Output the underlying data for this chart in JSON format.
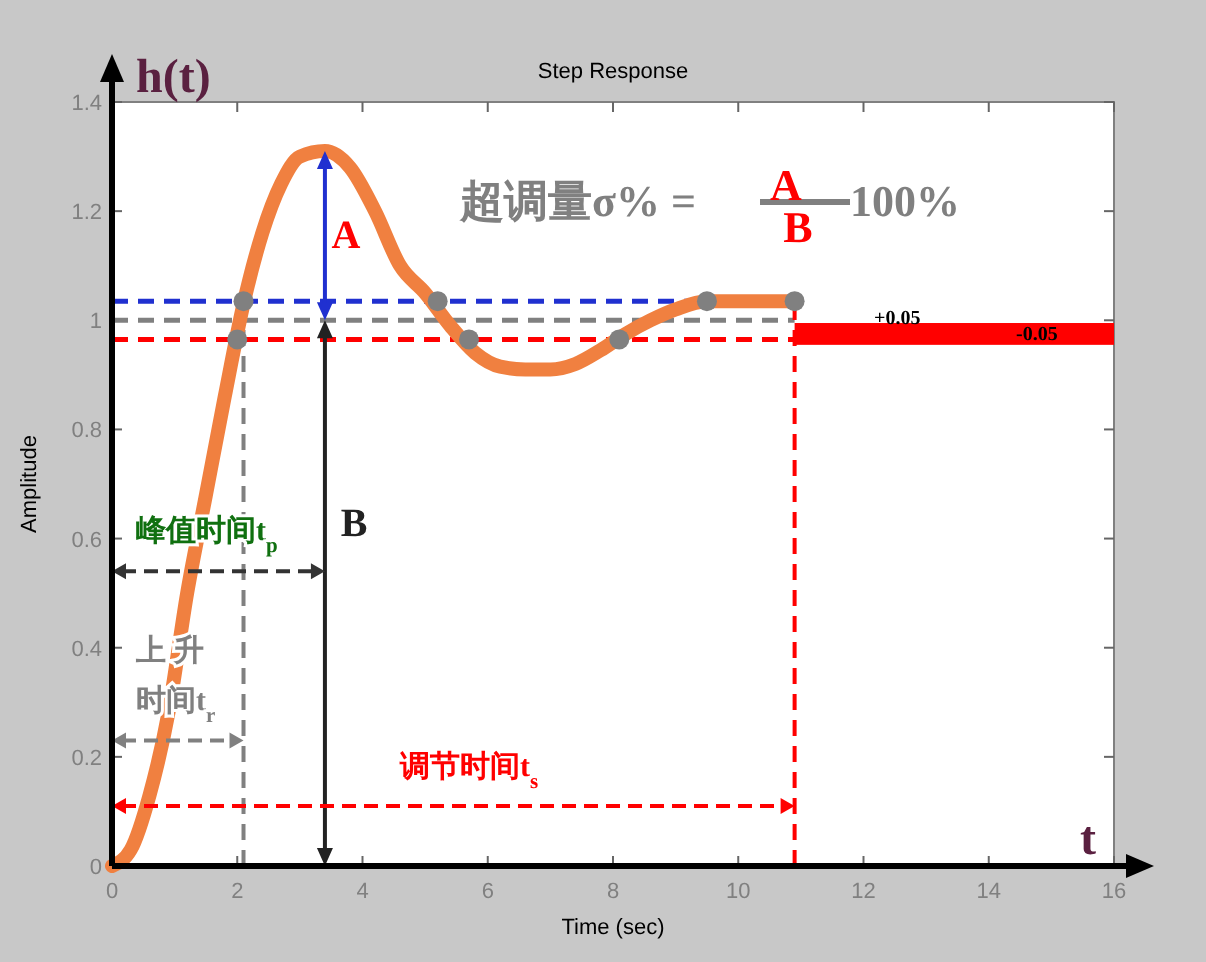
{
  "chart_data": {
    "type": "line",
    "title": "Step Response",
    "xlabel": "Time (sec)",
    "ylabel": "Amplitude",
    "xlim": [
      0,
      16
    ],
    "xticks": [
      0,
      2,
      4,
      6,
      8,
      10,
      12,
      14,
      16
    ],
    "ylim": [
      0,
      1.4
    ],
    "yticks": [
      0,
      0.2,
      0.4,
      0.6,
      0.8,
      1,
      1.2,
      1.4
    ],
    "series": [
      {
        "type": "line",
        "color": "#f08040",
        "marker": "none",
        "x": [
          0,
          0.3,
          0.6,
          0.9,
          1.2,
          1.5,
          1.8,
          2.1,
          2.4,
          2.7,
          3.0,
          3.4,
          3.8,
          4.2,
          4.6,
          5.0,
          5.4,
          5.8,
          6.2,
          6.6,
          7.0,
          7.4,
          7.8,
          8.2,
          8.6,
          9.0,
          9.5,
          10.0,
          10.5,
          10.9
        ],
        "values": [
          0,
          0.03,
          0.13,
          0.28,
          0.5,
          0.68,
          0.86,
          1.03,
          1.16,
          1.25,
          1.3,
          1.31,
          1.28,
          1.2,
          1.1,
          1.05,
          0.99,
          0.94,
          0.915,
          0.91,
          0.91,
          0.92,
          0.945,
          0.975,
          1.0,
          1.02,
          1.035,
          1.035,
          1.035,
          1.035
        ]
      },
      {
        "type": "scatter",
        "color": "#808080",
        "marker": "circle",
        "x": [
          2.1,
          2.0,
          5.2,
          5.7,
          8.1,
          9.5,
          10.9
        ],
        "values": [
          1.035,
          0.965,
          1.035,
          0.965,
          0.965,
          1.035,
          1.035
        ]
      }
    ],
    "ref_lines": [
      {
        "axis": "y",
        "value": 1.035,
        "color": "#2030d0",
        "line_style": "dashed"
      },
      {
        "axis": "y",
        "value": 1,
        "color": "#808080",
        "line_style": "dashed"
      },
      {
        "axis": "y",
        "value": 0.965,
        "color": "#ff0000",
        "line_style": "dashed"
      },
      {
        "axis": "x",
        "value": 2.1,
        "color": "#808080",
        "line_style": "dashed"
      },
      {
        "axis": "x",
        "value": 10.9,
        "color": "#ff0000",
        "line_style": "dashed"
      }
    ],
    "bands": [
      {
        "axis": "y",
        "from": 0.955,
        "to": 0.995,
        "color": "#ff0000"
      }
    ],
    "annotations": [
      "超调量σ% =",
      "A",
      "B",
      "100%",
      "h(t)",
      "t",
      "A",
      "B",
      "峰值时间t$_{p}$",
      "上 升",
      "时间t$_{r}$",
      "调节时间t$_{s}$",
      "+0.05",
      "-0.05"
    ]
  }
}
